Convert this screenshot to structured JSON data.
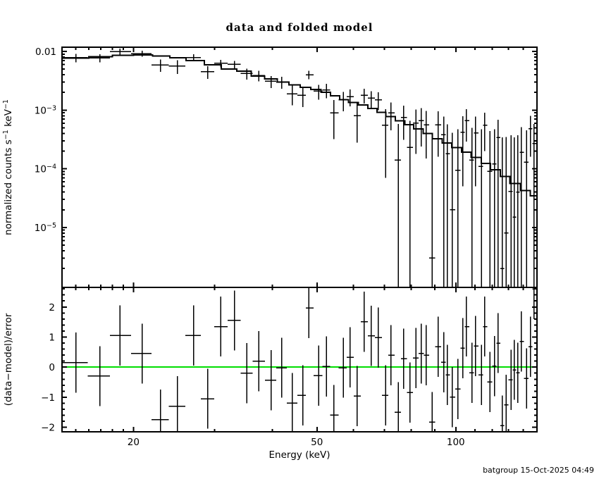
{
  "title": "data and folded model",
  "footer": "batgroup 15-Oct-2025 04:49",
  "colors": {
    "foreground": "#000000",
    "background": "#ffffff",
    "model_line": "#000000",
    "zero_line": "#00dd00"
  },
  "chart_data": {
    "type": "scatter",
    "title": "data and folded model",
    "xlabel": "Energy (keV)",
    "xscale": "log",
    "xlim": [
      14,
      150
    ],
    "x_major_ticks": [
      {
        "v": 20,
        "label": "20"
      },
      {
        "v": 50,
        "label": "50"
      },
      {
        "v": 100,
        "label": "100"
      }
    ],
    "x_minor_ticks": [
      15,
      16,
      17,
      18,
      19,
      30,
      40,
      60,
      70,
      80,
      90,
      110,
      120,
      130,
      140
    ],
    "panels": [
      {
        "name": "spectrum",
        "ylabel": "normalized counts s−1 keV−1",
        "ylabel_parts": {
          "pre": "normalized counts s",
          "sup1": "−1",
          "mid": " keV",
          "sup2": "−1"
        },
        "yscale": "log",
        "ylim": [
          9.5e-07,
          0.0118
        ],
        "y_major_ticks": [
          {
            "v": 0.01,
            "base": "0.01",
            "exp": ""
          },
          {
            "v": 0.001,
            "base": "10",
            "exp": "−3"
          },
          {
            "v": 0.0001,
            "base": "10",
            "exp": "−4"
          },
          {
            "v": 1e-05,
            "base": "10",
            "exp": "−5"
          }
        ]
      },
      {
        "name": "residuals",
        "ylabel": "(data−model)/error",
        "yscale": "linear",
        "ylim": [
          -2.15,
          2.65
        ],
        "y_major_ticks": [
          {
            "v": 2,
            "label": "2"
          },
          {
            "v": 1,
            "label": "1"
          },
          {
            "v": 0,
            "label": "0"
          },
          {
            "v": -1,
            "label": "−1"
          },
          {
            "v": -2,
            "label": "−2"
          }
        ],
        "y_minor_step": 0.2,
        "zero_line": 0,
        "residual_error": 1
      }
    ],
    "series": [
      {
        "name": "data",
        "marker": "cross-errorbar",
        "color": "#000000",
        "columns": [
          "energy_keV",
          "value",
          "error",
          "residual_sigma"
        ],
        "points": [
          [
            15.0,
            0.0078,
            0.0013,
            0.15
          ],
          [
            16.9,
            0.0077,
            0.0012,
            -0.3
          ],
          [
            18.7,
            0.0099,
            0.0012,
            1.05
          ],
          [
            20.9,
            0.0092,
            0.0011,
            0.45
          ],
          [
            22.9,
            0.0059,
            0.0014,
            -1.75
          ],
          [
            24.9,
            0.0056,
            0.0015,
            -1.3
          ],
          [
            27.0,
            0.0079,
            0.001,
            1.05
          ],
          [
            29.0,
            0.0045,
            0.0011,
            -1.05
          ],
          [
            30.9,
            0.0063,
            0.0009,
            1.35
          ],
          [
            33.1,
            0.006,
            0.0009,
            1.55
          ],
          [
            35.2,
            0.0042,
            0.0009,
            -0.2
          ],
          [
            37.4,
            0.0039,
            0.0008,
            0.2
          ],
          [
            39.8,
            0.0031,
            0.00072,
            -0.43
          ],
          [
            41.9,
            0.003,
            0.0007,
            -0.02
          ],
          [
            44.2,
            0.0019,
            0.0007,
            -1.19
          ],
          [
            46.6,
            0.0018,
            0.00068,
            -0.94
          ],
          [
            48.0,
            0.004,
            0.00065,
            1.97
          ],
          [
            50.4,
            0.0021,
            0.0006,
            -0.28
          ],
          [
            52.4,
            0.0022,
            0.0006,
            0.02
          ],
          [
            54.4,
            0.0009,
            0.00058,
            -1.59
          ],
          [
            57.0,
            0.0015,
            0.00055,
            -0.02
          ],
          [
            59.0,
            0.0017,
            0.00055,
            0.33
          ],
          [
            61.1,
            0.0008,
            0.00052,
            -0.96
          ],
          [
            63.3,
            0.0018,
            0.0005,
            1.51
          ],
          [
            65.6,
            0.0016,
            0.0005,
            1.04
          ],
          [
            67.9,
            0.0015,
            0.0005,
            0.98
          ],
          [
            70.4,
            0.00055,
            0.00048,
            -0.94
          ],
          [
            72.4,
            0.0009,
            0.00045,
            0.4
          ],
          [
            75.0,
            0.00014,
            0.00044,
            -1.5
          ],
          [
            77.1,
            0.00075,
            0.00044,
            0.28
          ],
          [
            79.6,
            0.00023,
            0.00043,
            -0.84
          ],
          [
            81.9,
            0.0006,
            0.00042,
            0.3
          ],
          [
            84.2,
            0.00066,
            0.00042,
            0.45
          ],
          [
            86.3,
            0.00056,
            0.00041,
            0.4
          ],
          [
            88.8,
            3e-06,
            0.0004,
            -1.83
          ],
          [
            91.6,
            0.00056,
            0.0004,
            0.68
          ],
          [
            94.2,
            0.00038,
            0.00039,
            0.16
          ],
          [
            95.9,
            0.00018,
            0.00039,
            -0.26
          ],
          [
            98.3,
            2e-05,
            0.00039,
            -1.0
          ],
          [
            101.1,
            9.4e-05,
            0.00038,
            -0.73
          ],
          [
            103.6,
            0.00042,
            0.00037,
            0.63
          ],
          [
            105.5,
            0.00066,
            0.00037,
            1.35
          ],
          [
            108.5,
            0.00014,
            0.00036,
            -0.19
          ],
          [
            110.4,
            0.00041,
            0.00036,
            0.7
          ],
          [
            113.6,
            0.00011,
            0.00036,
            -0.26
          ],
          [
            115.6,
            0.00055,
            0.00035,
            1.35
          ],
          [
            118.5,
            9e-05,
            0.00035,
            -0.49
          ],
          [
            121.4,
            0.00012,
            0.00035,
            0.03
          ],
          [
            123.6,
            0.00034,
            0.00034,
            0.8
          ],
          [
            126.2,
            2e-06,
            0.00034,
            -1.94
          ],
          [
            128.5,
            8e-06,
            0.00034,
            -1.25
          ],
          [
            131.7,
            4.1e-05,
            0.00033,
            -0.42
          ],
          [
            134.0,
            1.5e-05,
            0.00033,
            -0.09
          ],
          [
            136.4,
            4e-05,
            0.00033,
            -0.19
          ],
          [
            138.8,
            0.00019,
            0.00032,
            0.85
          ],
          [
            142.3,
            0.00013,
            0.00032,
            -0.38
          ],
          [
            145.3,
            0.00048,
            0.00032,
            0.68
          ],
          [
            147.9,
            0.00027,
            0.00031,
            2.6
          ]
        ]
      },
      {
        "name": "folded model",
        "style": "step-histogram",
        "color": "#000000",
        "columns": [
          "e_lo_keV",
          "e_hi_keV",
          "value"
        ],
        "steps": [
          [
            14,
            16,
            0.0077
          ],
          [
            16,
            18,
            0.0081
          ],
          [
            18,
            20,
            0.0086
          ],
          [
            20,
            22,
            0.0087
          ],
          [
            22,
            24,
            0.0084
          ],
          [
            24,
            26,
            0.0078
          ],
          [
            26,
            28.5,
            0.007
          ],
          [
            28.5,
            31,
            0.0059
          ],
          [
            31,
            33.5,
            0.005
          ],
          [
            33.5,
            36,
            0.0046
          ],
          [
            36,
            38.5,
            0.0038
          ],
          [
            38.5,
            41,
            0.0034
          ],
          [
            41,
            43.5,
            0.003
          ],
          [
            43.5,
            46,
            0.0027
          ],
          [
            46,
            48.5,
            0.00245
          ],
          [
            48.5,
            51,
            0.00224
          ],
          [
            51,
            53.5,
            0.002
          ],
          [
            53.5,
            56,
            0.00174
          ],
          [
            56,
            58.5,
            0.00151
          ],
          [
            58.5,
            61.5,
            0.00135
          ],
          [
            61.5,
            64.5,
            0.00123
          ],
          [
            64.5,
            67.5,
            0.00107
          ],
          [
            67.5,
            70.5,
            0.00091
          ],
          [
            70.5,
            74,
            0.00078
          ],
          [
            74,
            77.5,
            0.00066
          ],
          [
            77.5,
            81,
            0.00056
          ],
          [
            81,
            85,
            0.00048
          ],
          [
            85,
            89,
            0.0004
          ],
          [
            89,
            93.5,
            0.000324
          ],
          [
            93.5,
            98,
            0.000275
          ],
          [
            98,
            103,
            0.000229
          ],
          [
            103,
            108,
            0.000191
          ],
          [
            108,
            113.5,
            0.000155
          ],
          [
            113.5,
            119,
            0.000123
          ],
          [
            119,
            125,
            9.55e-05
          ],
          [
            125,
            131,
            7.41e-05
          ],
          [
            131,
            138,
            5.62e-05
          ],
          [
            138,
            145,
            4.27e-05
          ],
          [
            145,
            150,
            3.47e-05
          ]
        ]
      }
    ]
  }
}
